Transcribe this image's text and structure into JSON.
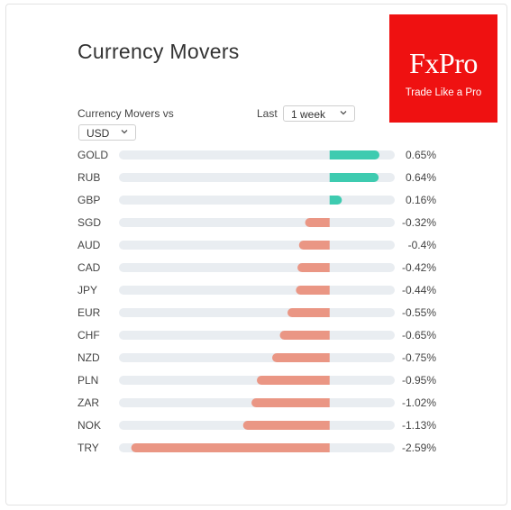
{
  "header": {
    "title": "Currency Movers"
  },
  "logo": {
    "brand": "FxPro",
    "tagline": "Trade Like a Pro"
  },
  "controls": {
    "movers_label": "Currency Movers vs",
    "base_value": "USD",
    "period_label": "Last",
    "period_value": "1 week"
  },
  "colors": {
    "positive": "#3ecbb0",
    "negative": "#ea9684",
    "track": "#e9edf1",
    "logo_bg": "#ef1111"
  },
  "chart_data": {
    "type": "bar",
    "orientation": "horizontal",
    "categories": [
      "GOLD",
      "RUB",
      "GBP",
      "SGD",
      "AUD",
      "CAD",
      "JPY",
      "EUR",
      "CHF",
      "NZD",
      "PLN",
      "ZAR",
      "NOK",
      "TRY"
    ],
    "values": [
      0.65,
      0.64,
      0.16,
      -0.32,
      -0.4,
      -0.42,
      -0.44,
      -0.55,
      -0.65,
      -0.75,
      -0.95,
      -1.02,
      -1.13,
      -2.59
    ],
    "value_labels": [
      "0.65%",
      "0.64%",
      "0.16%",
      "-0.32%",
      "-0.4%",
      "-0.42%",
      "-0.44%",
      "-0.55%",
      "-0.65%",
      "-0.75%",
      "-0.95%",
      "-1.02%",
      "-1.13%",
      "-2.59%"
    ],
    "xlim": [
      -2.75,
      0.85
    ],
    "unit": "%"
  }
}
